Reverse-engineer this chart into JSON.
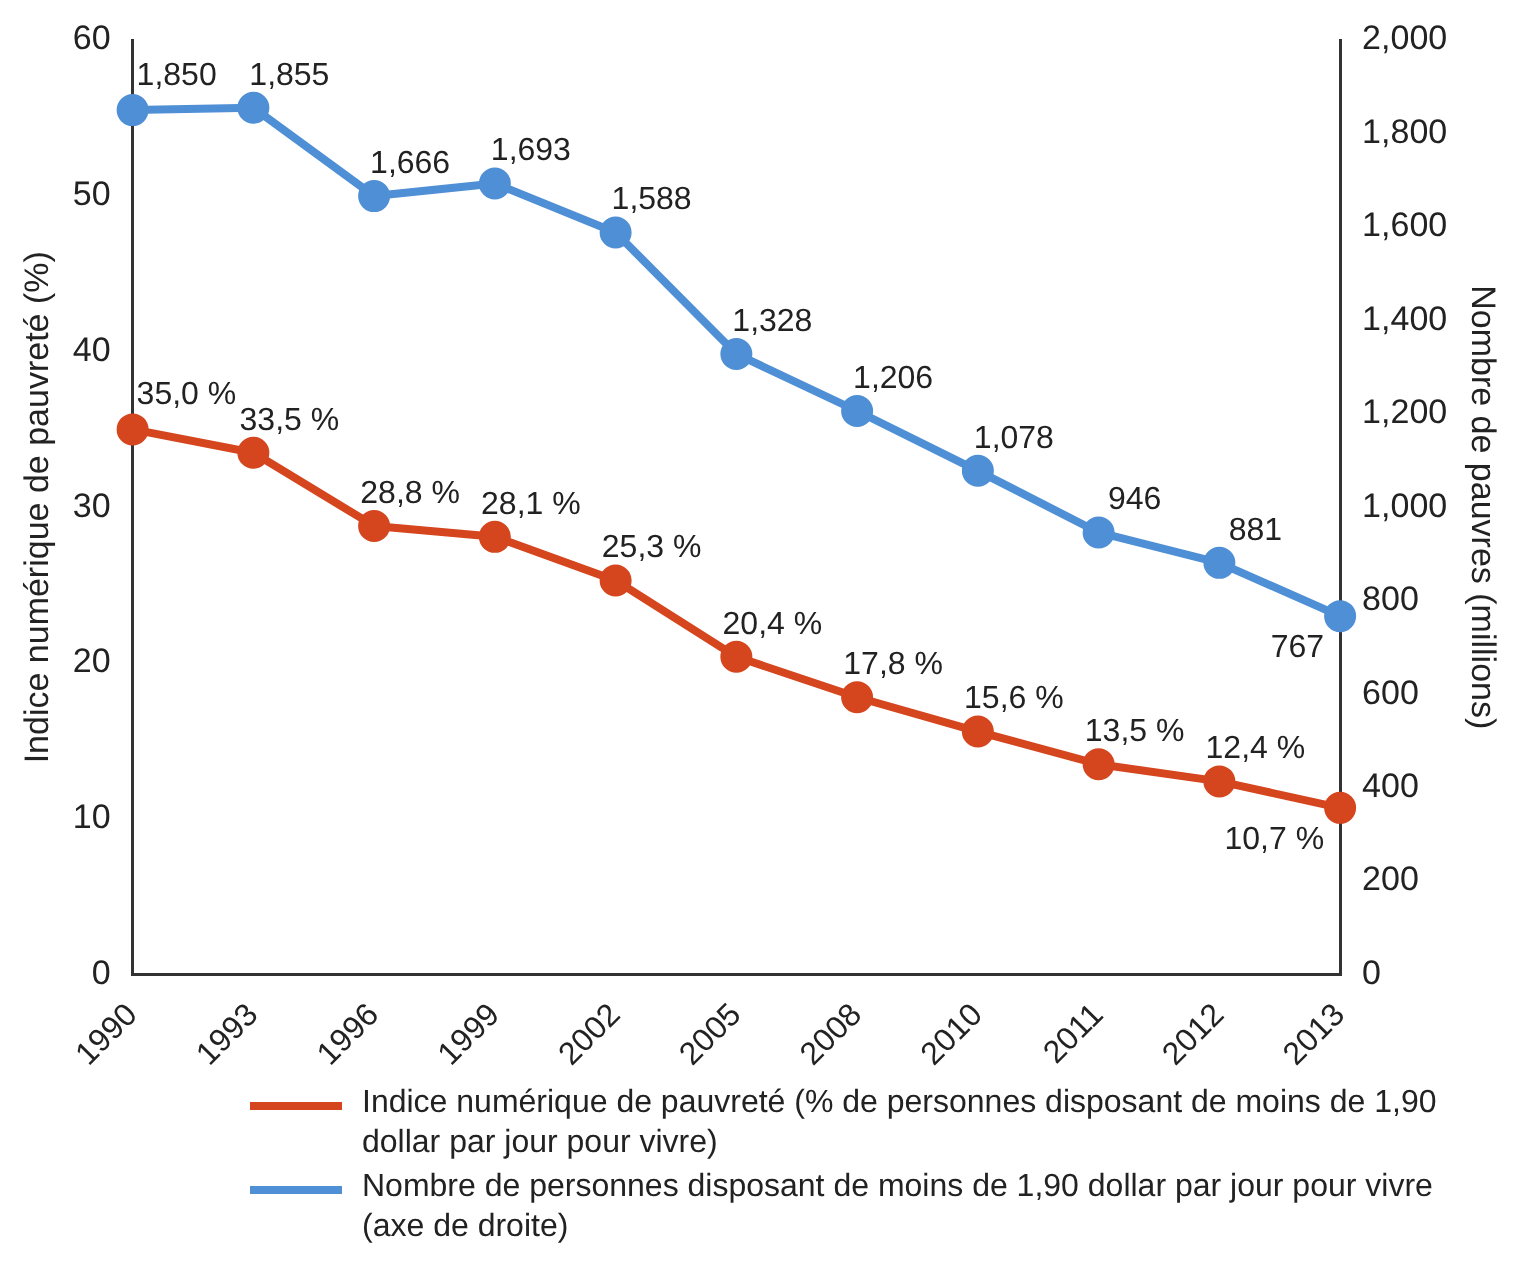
{
  "chart_data": {
    "type": "line",
    "categories": [
      "1990",
      "1993",
      "1996",
      "1999",
      "2002",
      "2005",
      "2008",
      "2010",
      "2011",
      "2012",
      "2013"
    ],
    "ylabel": "Indice numérique de pauvreté (%)",
    "y2label": "Nombre de pauvres (millions)",
    "ylim": [
      0,
      60
    ],
    "yticks": [
      0,
      10,
      20,
      30,
      40,
      50,
      60
    ],
    "y2lim": [
      0,
      2000
    ],
    "y2ticks": [
      {
        "value": 0,
        "label": "0"
      },
      {
        "value": 200,
        "label": "200"
      },
      {
        "value": 400,
        "label": "400"
      },
      {
        "value": 600,
        "label": "600"
      },
      {
        "value": 800,
        "label": "800"
      },
      {
        "value": 1000,
        "label": "1,000"
      },
      {
        "value": 1200,
        "label": "1,200"
      },
      {
        "value": 1400,
        "label": "1,400"
      },
      {
        "value": 1600,
        "label": "1,600"
      },
      {
        "value": 1800,
        "label": "1,800"
      },
      {
        "value": 2000,
        "label": "2,000"
      }
    ],
    "grid": false,
    "legend": "bottom",
    "marker": "circle",
    "line_style": "solid",
    "series": [
      {
        "name": "Indice numérique de pauvreté (% de personnes disposant de moins de 1,90 dollar par jour pour vivre)",
        "color": "#d5461f",
        "axis": "y",
        "values": [
          35.0,
          33.5,
          28.8,
          28.1,
          25.3,
          20.4,
          17.8,
          15.6,
          13.5,
          12.4,
          10.7
        ],
        "value_labels": [
          "35,0 %",
          "33,5 %",
          "28,8 %",
          "28,1 %",
          "25,3 %",
          "20,4 %",
          "17,8 %",
          "15,6 %",
          "13,5 %",
          "12,4 %",
          "10,7 %"
        ]
      },
      {
        "name": "Nombre de personnes disposant de moins de 1,90 dollar par jour pour vivre (axe de droite)",
        "color": "#4f8fd6",
        "axis": "y2",
        "values": [
          1850,
          1855,
          1666,
          1693,
          1588,
          1328,
          1206,
          1078,
          946,
          881,
          767
        ],
        "value_labels": [
          "1,850",
          "1,855",
          "1,666",
          "1,693",
          "1,588",
          "1,328",
          "1,206",
          "1,078",
          "946",
          "881",
          "767"
        ]
      }
    ]
  }
}
